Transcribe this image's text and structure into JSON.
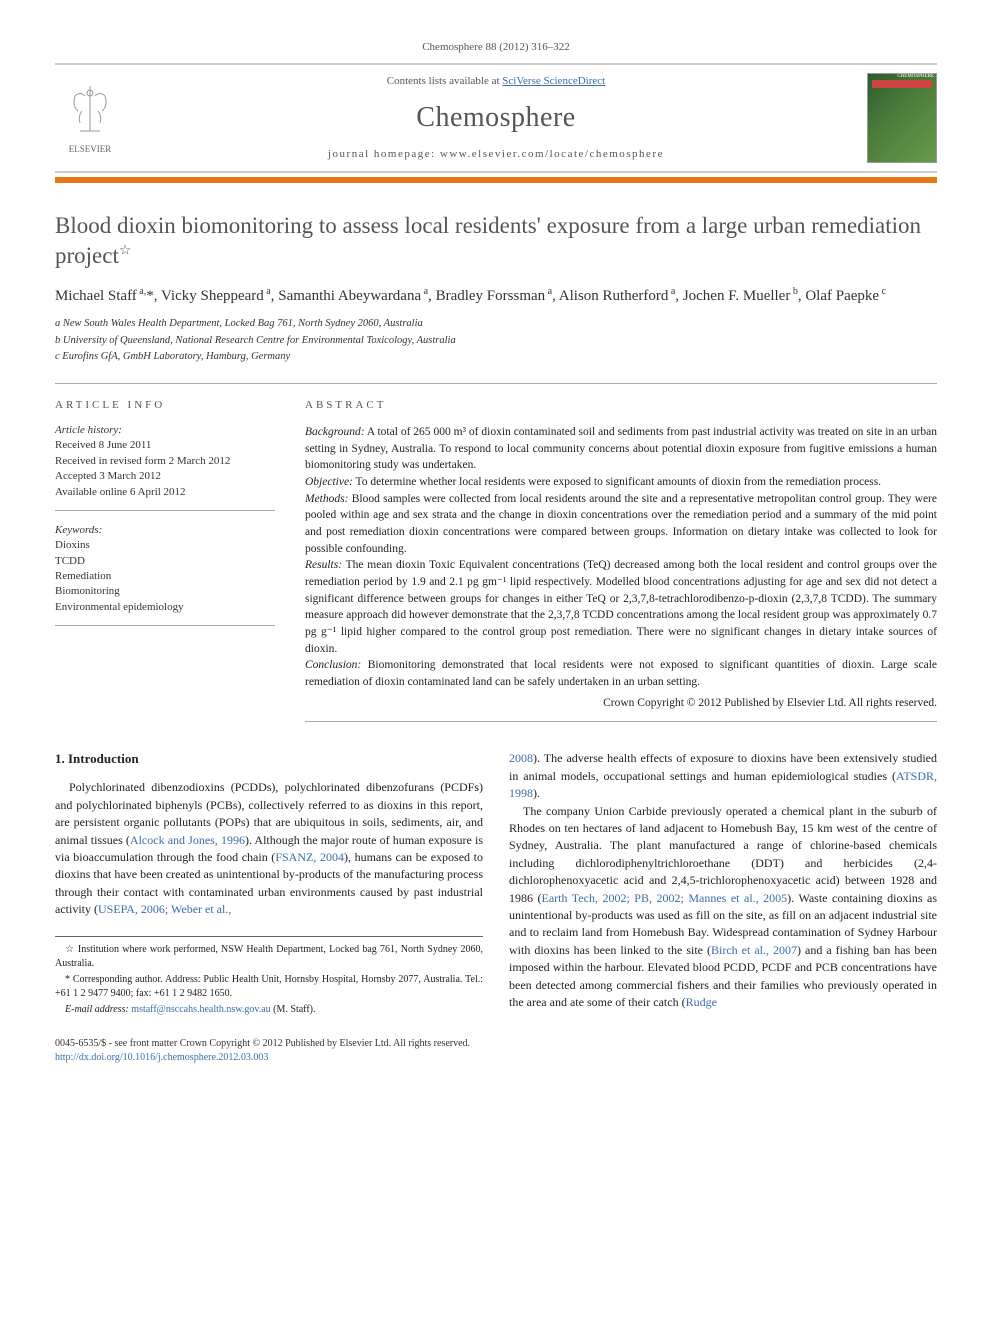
{
  "citation": "Chemosphere 88 (2012) 316–322",
  "header": {
    "contents_text": "Contents lists available at ",
    "contents_link": "SciVerse ScienceDirect",
    "journal": "Chemosphere",
    "homepage_label": "journal homepage: ",
    "homepage_url": "www.elsevier.com/locate/chemosphere",
    "publisher_name": "ELSEVIER",
    "cover_label": "CHEMOSPHERE"
  },
  "title": "Blood dioxin biomonitoring to assess local residents' exposure from a large urban remediation project",
  "title_note_marker": "☆",
  "authors_html": "Michael Staff<sup> a,</sup>*, Vicky Sheppeard<sup> a</sup>, Samanthi Abeywardana<sup> a</sup>, Bradley Forssman<sup> a</sup>, Alison Rutherford<sup> a</sup>, Jochen F. Mueller<sup> b</sup>, Olaf Paepke<sup> c</sup>",
  "affiliations": {
    "a": "a New South Wales Health Department, Locked Bag 761, North Sydney 2060, Australia",
    "b": "b University of Queensland, National Research Centre for Environmental Toxicology, Australia",
    "c": "c Eurofins GfA, GmbH Laboratory, Hamburg, Germany"
  },
  "article_info": {
    "heading": "ARTICLE INFO",
    "history_label": "Article history:",
    "history": [
      "Received 8 June 2011",
      "Received in revised form 2 March 2012",
      "Accepted 3 March 2012",
      "Available online 6 April 2012"
    ],
    "keywords_label": "Keywords:",
    "keywords": [
      "Dioxins",
      "TCDD",
      "Remediation",
      "Biomonitoring",
      "Environmental epidemiology"
    ]
  },
  "abstract": {
    "heading": "ABSTRACT",
    "background_label": "Background:",
    "background": " A total of 265 000 m³ of dioxin contaminated soil and sediments from past industrial activity was treated on site in an urban setting in Sydney, Australia. To respond to local community concerns about potential dioxin exposure from fugitive emissions a human biomonitoring study was undertaken.",
    "objective_label": "Objective:",
    "objective": " To determine whether local residents were exposed to significant amounts of dioxin from the remediation process.",
    "methods_label": "Methods:",
    "methods": " Blood samples were collected from local residents around the site and a representative metropolitan control group. They were pooled within age and sex strata and the change in dioxin concentrations over the remediation period and a summary of the mid point and post remediation dioxin concentrations were compared between groups. Information on dietary intake was collected to look for possible confounding.",
    "results_label": "Results:",
    "results": " The mean dioxin Toxic Equivalent concentrations (TeQ) decreased among both the local resident and control groups over the remediation period by 1.9 and 2.1 pg gm⁻¹ lipid respectively. Modelled blood concentrations adjusting for age and sex did not detect a significant difference between groups for changes in either TeQ or 2,3,7,8-tetrachlorodibenzo-p-dioxin (2,3,7,8 TCDD). The summary measure approach did however demonstrate that the 2,3,7,8 TCDD concentrations among the local resident group was approximately 0.7 pg g⁻¹ lipid higher compared to the control group post remediation. There were no significant changes in dietary intake sources of dioxin.",
    "conclusion_label": "Conclusion:",
    "conclusion": " Biomonitoring demonstrated that local residents were not exposed to significant quantities of dioxin. Large scale remediation of dioxin contaminated land can be safely undertaken in an urban setting.",
    "copyright": "Crown Copyright © 2012 Published by Elsevier Ltd. All rights reserved."
  },
  "intro": {
    "heading": "1. Introduction",
    "p1_a": "Polychlorinated dibenzodioxins (PCDDs), polychlorinated dibenzofurans (PCDFs) and polychlorinated biphenyls (PCBs), collectively referred to as dioxins in this report, are persistent organic pollutants (POPs) that are ubiquitous in soils, sediments, air, and animal tissues (",
    "p1_link1": "Alcock and Jones, 1996",
    "p1_b": "). Although the major route of human exposure is via bioaccumulation through the food chain (",
    "p1_link2": "FSANZ, 2004",
    "p1_c": "), humans can be exposed to dioxins that have been created as unintentional by-products of the manufacturing process through their contact with contaminated urban environments caused by past industrial activity (",
    "p1_link3": "USEPA, 2006; Weber et al.,",
    "p2_link_cont": "2008",
    "p2_a": "). The adverse health effects of exposure to dioxins have been extensively studied in animal models, occupational settings and human epidemiological studies (",
    "p2_link1": "ATSDR, 1998",
    "p2_b": ").",
    "p3_a": "The company Union Carbide previously operated a chemical plant in the suburb of Rhodes on ten hectares of land adjacent to Homebush Bay, 15 km west of the centre of Sydney, Australia. The plant manufactured a range of chlorine-based chemicals including dichlorodiphenyltrichloroethane (DDT) and herbicides (2,4-dichlorophenoxyacetic acid and 2,4,5-trichlorophenoxyacetic acid) between 1928 and 1986 (",
    "p3_link1": "Earth Tech, 2002; PB, 2002; Mannes et al., 2005",
    "p3_b": "). Waste containing dioxins as unintentional by-products was used as fill on the site, as fill on an adjacent industrial site and to reclaim land from Homebush Bay. Widespread contamination of Sydney Harbour with dioxins has been linked to the site (",
    "p3_link2": "Birch et al., 2007",
    "p3_c": ") and a fishing ban has been imposed within the harbour. Elevated blood PCDD, PCDF and PCB concentrations have been detected among commercial fishers and their families who previously operated in the area and ate some of their catch (",
    "p3_link3": "Rudge"
  },
  "footnotes": {
    "inst": "☆ Institution where work performed, NSW Health Department, Locked bag 761, North Sydney 2060, Australia.",
    "corr": "* Corresponding author. Address: Public Health Unit, Hornsby Hospital, Hornsby 2077, Australia. Tel.: +61 1 2 9477 9400; fax: +61 1 2 9482 1650.",
    "email_label": "E-mail address: ",
    "email": "mstaff@nsccahs.health.nsw.gov.au",
    "email_tail": " (M. Staff)."
  },
  "footer": {
    "line1": "0045-6535/$ - see front matter Crown Copyright © 2012 Published by Elsevier Ltd. All rights reserved.",
    "doi": "http://dx.doi.org/10.1016/j.chemosphere.2012.03.003"
  },
  "colors": {
    "accent_orange": "#e67817",
    "link_blue": "#3a6ea5",
    "text_gray": "#555555"
  }
}
